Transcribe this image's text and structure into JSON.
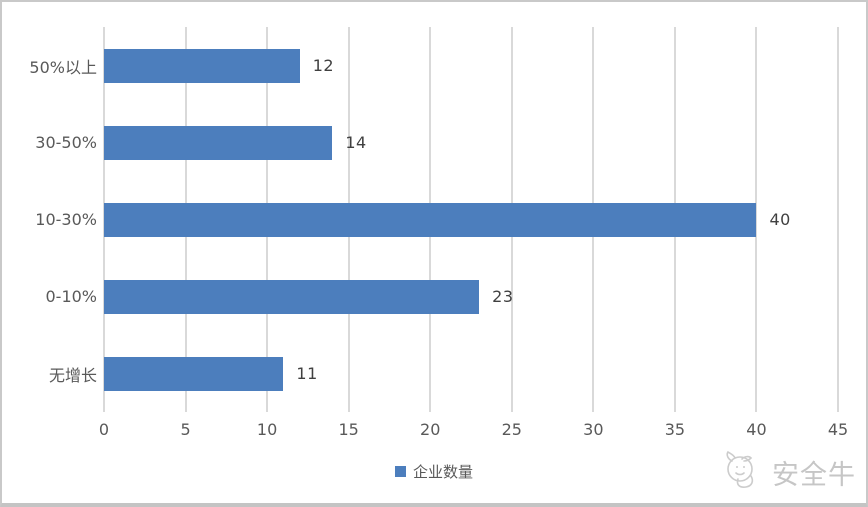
{
  "chart_data": {
    "type": "bar",
    "orientation": "horizontal",
    "categories": [
      "50%以上",
      "30-50%",
      "10-30%",
      "0-10%",
      "无增长"
    ],
    "values": [
      12,
      14,
      40,
      23,
      11
    ],
    "series_name": "企业数量",
    "title": "",
    "xlabel": "",
    "ylabel": "",
    "xlim": [
      0,
      45
    ],
    "x_ticks": [
      0,
      5,
      10,
      15,
      20,
      25,
      30,
      35,
      40,
      45
    ],
    "grid": "vertical",
    "data_labels": "outside-end",
    "legend_position": "bottom-center",
    "bar_color": "#4c7ebd",
    "gridline_color": "#d9d9d9"
  },
  "legend": {
    "label": "企业数量",
    "swatch_color": "#4c7ebd"
  },
  "watermark": {
    "label": "安全牛",
    "icon": "cow-logo-icon",
    "color": "#c6c6c6"
  }
}
